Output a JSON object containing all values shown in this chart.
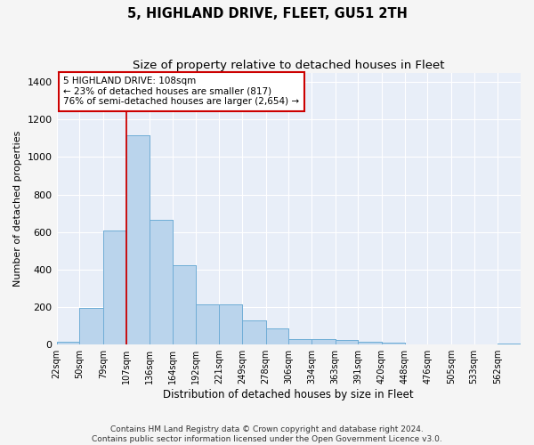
{
  "title": "5, HIGHLAND DRIVE, FLEET, GU51 2TH",
  "subtitle": "Size of property relative to detached houses in Fleet",
  "xlabel": "Distribution of detached houses by size in Fleet",
  "ylabel": "Number of detached properties",
  "footer_line1": "Contains HM Land Registry data © Crown copyright and database right 2024.",
  "footer_line2": "Contains public sector information licensed under the Open Government Licence v3.0.",
  "annotation_line1": "5 HIGHLAND DRIVE: 108sqm",
  "annotation_line2": "← 23% of detached houses are smaller (817)",
  "annotation_line3": "76% of semi-detached houses are larger (2,654) →",
  "bar_color": "#bad4ec",
  "bar_edge_color": "#6aaad4",
  "property_line_color": "#cc0000",
  "annotation_box_facecolor": "#ffffff",
  "annotation_box_edgecolor": "#cc0000",
  "background_color": "#e8eef8",
  "figure_facecolor": "#f5f5f5",
  "grid_color": "#ffffff",
  "ylim": [
    0,
    1450
  ],
  "yticks": [
    0,
    200,
    400,
    600,
    800,
    1000,
    1200,
    1400
  ],
  "bin_edges": [
    22,
    50,
    79,
    107,
    136,
    164,
    192,
    221,
    249,
    278,
    306,
    334,
    363,
    391,
    420,
    448,
    476,
    505,
    533,
    562,
    590
  ],
  "bar_heights": [
    15,
    195,
    610,
    1115,
    665,
    425,
    215,
    215,
    130,
    85,
    30,
    30,
    25,
    15,
    10,
    0,
    0,
    0,
    0,
    5
  ],
  "property_line_x": 108,
  "title_fontsize": 10.5,
  "subtitle_fontsize": 9.5,
  "xlabel_fontsize": 8.5,
  "ylabel_fontsize": 8,
  "ytick_fontsize": 8,
  "xtick_fontsize": 7,
  "annotation_fontsize": 7.5,
  "footer_fontsize": 6.5
}
